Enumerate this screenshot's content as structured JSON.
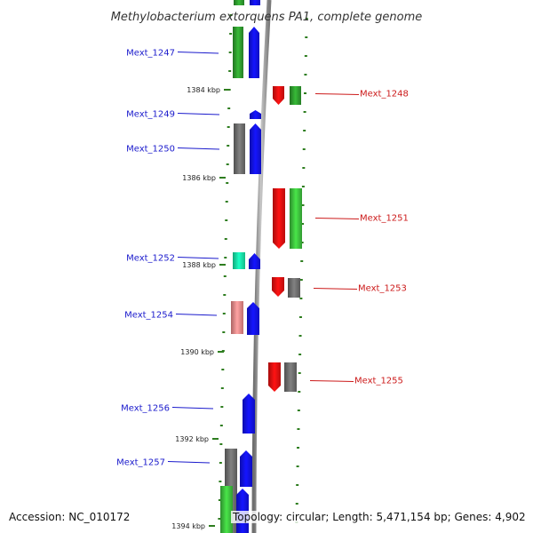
{
  "title": "Methylobacterium extorquens PA1, complete genome",
  "footer": {
    "accession": "Accession: NC_010172",
    "summary": "Topology: circular; Length: 5,471,154 bp; Genes: 4,902"
  },
  "colors": {
    "backbone": "#8c8c8c",
    "tick": "#2e7d1f",
    "left_label": "#1a1acc",
    "right_label": "#cc1a1a"
  },
  "ticks": [
    {
      "label": "1384 kbp"
    },
    {
      "label": "1386 kbp"
    },
    {
      "label": "1388 kbp"
    },
    {
      "label": "1390 kbp"
    },
    {
      "label": "1392 kbp"
    },
    {
      "label": "1394 kbp"
    }
  ],
  "genes": [
    {
      "label": "Mext_1247",
      "strand": "left"
    },
    {
      "label": "Mext_1248",
      "strand": "right"
    },
    {
      "label": "Mext_1249",
      "strand": "left"
    },
    {
      "label": "Mext_1250",
      "strand": "left"
    },
    {
      "label": "Mext_1251",
      "strand": "right"
    },
    {
      "label": "Mext_1252",
      "strand": "left"
    },
    {
      "label": "Mext_1253",
      "strand": "right"
    },
    {
      "label": "Mext_1254",
      "strand": "left"
    },
    {
      "label": "Mext_1255",
      "strand": "right"
    },
    {
      "label": "Mext_1256",
      "strand": "left"
    },
    {
      "label": "Mext_1257",
      "strand": "left"
    }
  ]
}
